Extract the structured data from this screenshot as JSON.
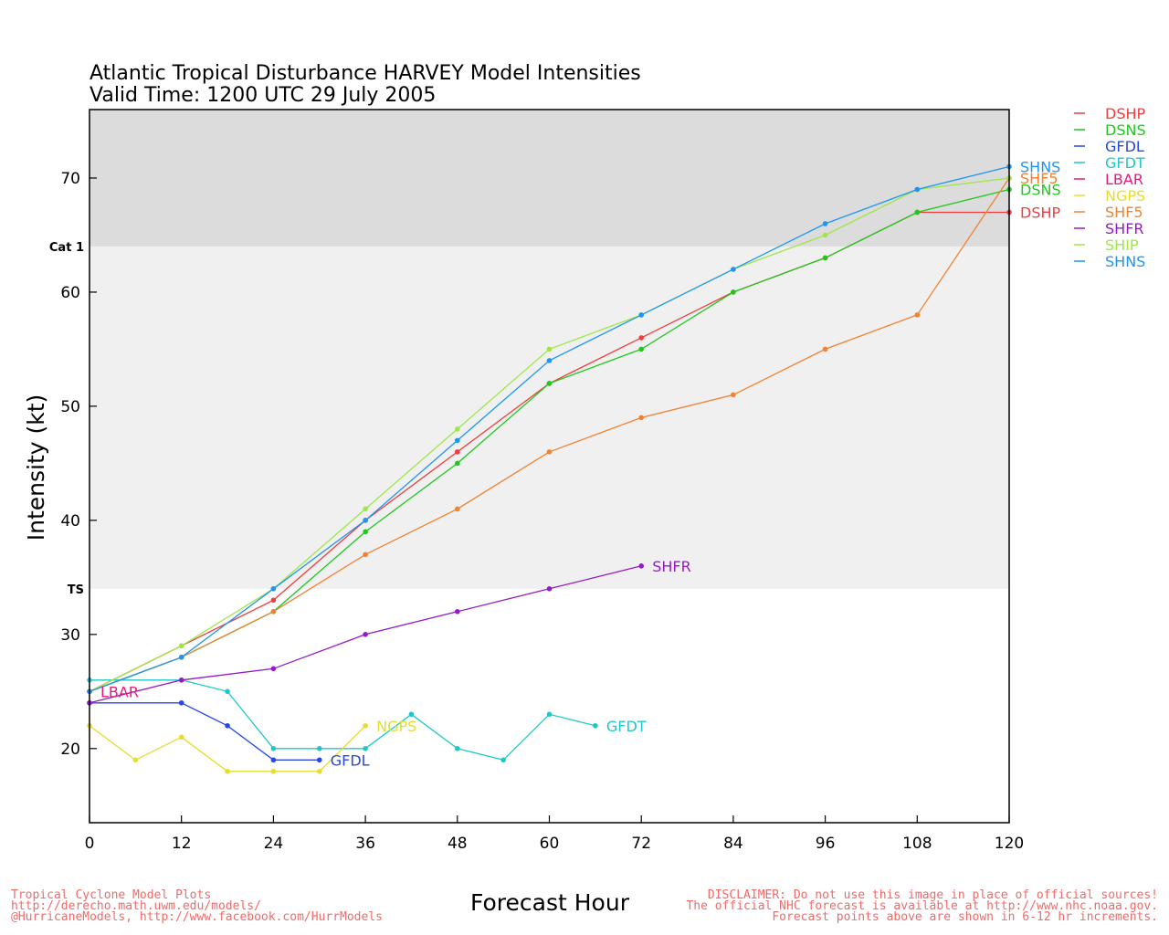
{
  "chart_data": {
    "type": "line",
    "title_line1": "Atlantic Tropical Disturbance HARVEY Model Intensities",
    "title_line2": "Valid Time: 1200 UTC 29 July 2005",
    "xlabel": "Forecast Hour",
    "ylabel": "Intensity (kt)",
    "xlim": [
      0,
      120
    ],
    "ylim": [
      13.5,
      76
    ],
    "x_ticks": [
      0,
      12,
      24,
      36,
      48,
      60,
      72,
      84,
      96,
      108,
      120
    ],
    "y_ticks": [
      20,
      30,
      40,
      50,
      60,
      70
    ],
    "bands": [
      {
        "label": "TS",
        "from": 34,
        "to": 64,
        "color": "#f0f0f0"
      },
      {
        "label": "Cat 1",
        "from": 64,
        "to": 76,
        "color": "#dcdcdc"
      }
    ],
    "legend_position": "right",
    "series": [
      {
        "name": "DSHP",
        "color": "#f03c3c",
        "end_label": true,
        "points": [
          [
            0,
            25
          ],
          [
            12,
            29
          ],
          [
            24,
            33
          ],
          [
            36,
            40
          ],
          [
            48,
            46
          ],
          [
            60,
            52
          ],
          [
            72,
            56
          ],
          [
            84,
            60
          ],
          [
            96,
            63
          ],
          [
            108,
            67
          ],
          [
            120,
            67
          ]
        ]
      },
      {
        "name": "DSNS",
        "color": "#1ec81e",
        "end_label": true,
        "points": [
          [
            0,
            25
          ],
          [
            12,
            28
          ],
          [
            24,
            32
          ],
          [
            36,
            39
          ],
          [
            48,
            45
          ],
          [
            60,
            52
          ],
          [
            72,
            55
          ],
          [
            84,
            60
          ],
          [
            96,
            63
          ],
          [
            108,
            67
          ],
          [
            120,
            69
          ]
        ]
      },
      {
        "name": "GFDL",
        "color": "#2846e6",
        "end_label": true,
        "points": [
          [
            0,
            24
          ],
          [
            12,
            24
          ],
          [
            18,
            22
          ],
          [
            24,
            19
          ],
          [
            30,
            19
          ]
        ]
      },
      {
        "name": "GFDT",
        "color": "#1ec8c8",
        "end_label": true,
        "points": [
          [
            0,
            26
          ],
          [
            12,
            26
          ],
          [
            18,
            25
          ],
          [
            24,
            20
          ],
          [
            30,
            20
          ],
          [
            36,
            20
          ],
          [
            42,
            23
          ],
          [
            48,
            20
          ],
          [
            54,
            19
          ],
          [
            60,
            23
          ],
          [
            66,
            22
          ]
        ]
      },
      {
        "name": "LBAR",
        "color": "#e6197d",
        "end_label": true,
        "points": [
          [
            0,
            25
          ]
        ]
      },
      {
        "name": "NGPS",
        "color": "#e6dc32",
        "end_label": true,
        "points": [
          [
            0,
            22
          ],
          [
            6,
            19
          ],
          [
            12,
            21
          ],
          [
            18,
            18
          ],
          [
            24,
            18
          ],
          [
            30,
            18
          ],
          [
            36,
            22
          ]
        ]
      },
      {
        "name": "SHF5",
        "color": "#f08232",
        "end_label": true,
        "points": [
          [
            0,
            25
          ],
          [
            12,
            28
          ],
          [
            24,
            32
          ],
          [
            36,
            37
          ],
          [
            48,
            41
          ],
          [
            60,
            46
          ],
          [
            72,
            49
          ],
          [
            84,
            51
          ],
          [
            96,
            55
          ],
          [
            108,
            58
          ],
          [
            120,
            70
          ]
        ]
      },
      {
        "name": "SHFR",
        "color": "#9619c8",
        "end_label": true,
        "points": [
          [
            0,
            24
          ],
          [
            12,
            26
          ],
          [
            24,
            27
          ],
          [
            36,
            30
          ],
          [
            48,
            32
          ],
          [
            60,
            34
          ],
          [
            72,
            36
          ]
        ]
      },
      {
        "name": "SHIP",
        "color": "#a0e646",
        "end_label": false,
        "points": [
          [
            0,
            25
          ],
          [
            12,
            29
          ],
          [
            24,
            34
          ],
          [
            36,
            41
          ],
          [
            48,
            48
          ],
          [
            60,
            55
          ],
          [
            72,
            58
          ],
          [
            84,
            62
          ],
          [
            96,
            65
          ],
          [
            108,
            69
          ],
          [
            120,
            70
          ]
        ]
      },
      {
        "name": "SHNS",
        "color": "#1e96f0",
        "end_label": true,
        "points": [
          [
            0,
            25
          ],
          [
            12,
            28
          ],
          [
            24,
            34
          ],
          [
            36,
            40
          ],
          [
            48,
            47
          ],
          [
            60,
            54
          ],
          [
            72,
            58
          ],
          [
            84,
            62
          ],
          [
            96,
            66
          ],
          [
            108,
            69
          ],
          [
            120,
            71
          ]
        ]
      }
    ]
  },
  "footer": {
    "left_1": "Tropical Cyclone Model Plots",
    "left_2": "http://derecho.math.uwm.edu/models/",
    "left_3": "@HurricaneModels, http://www.facebook.com/HurrModels",
    "right_1": "DISCLAIMER: Do not use this image in place of official sources!",
    "right_2": "The official NHC forecast is available at http://www.nhc.noaa.gov.",
    "right_3": "Forecast points above are shown in 6-12 hr increments."
  }
}
